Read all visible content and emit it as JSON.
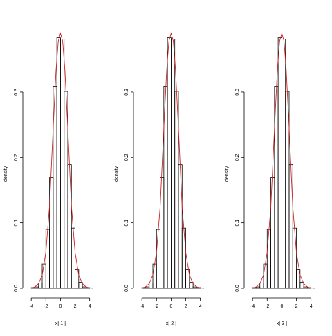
{
  "chart_data": [
    {
      "type": "bar",
      "xlabel": "x[ 1 ]",
      "ylabel": "density",
      "xticks": [
        "-4",
        "-2",
        "0",
        "2",
        "4"
      ],
      "yticks": [
        "0.0",
        "0.1",
        "0.2",
        "0.3"
      ],
      "xlim": [
        -4.3,
        4.6
      ],
      "ylim": [
        0,
        0.39
      ],
      "bin_edges": [
        -4,
        -3.5,
        -3,
        -2.5,
        -2,
        -1.5,
        -1,
        -0.5,
        0,
        0.5,
        1,
        1.5,
        2,
        2.5,
        3,
        3.5,
        4
      ],
      "values": [
        0.001,
        0.002,
        0.008,
        0.037,
        0.09,
        0.169,
        0.309,
        0.383,
        0.381,
        0.301,
        0.189,
        0.092,
        0.028,
        0.009,
        0.002,
        0.001
      ],
      "density_curve": {
        "x": [
          -4.0,
          -3.5,
          -3.0,
          -2.5,
          -2.0,
          -1.5,
          -1.0,
          -0.6,
          -0.3,
          0.0,
          0.3,
          0.6,
          1.0,
          1.5,
          2.0,
          2.5,
          3.0,
          3.5,
          4.0,
          4.5
        ],
        "y": [
          0.0005,
          0.002,
          0.007,
          0.02,
          0.055,
          0.125,
          0.245,
          0.335,
          0.378,
          0.39,
          0.378,
          0.335,
          0.245,
          0.125,
          0.055,
          0.02,
          0.007,
          0.002,
          0.0005,
          0.0001
        ],
        "color": "#cc2222"
      },
      "bar_color": "#000000"
    },
    {
      "type": "bar",
      "xlabel": "x[ 2 ]",
      "ylabel": "density",
      "xticks": [
        "-4",
        "-2",
        "0",
        "2",
        "4"
      ],
      "yticks": [
        "0.0",
        "0.1",
        "0.2",
        "0.3"
      ],
      "xlim": [
        -4.3,
        4.6
      ],
      "ylim": [
        0,
        0.39
      ],
      "bin_edges": [
        -4,
        -3.5,
        -3,
        -2.5,
        -2,
        -1.5,
        -1,
        -0.5,
        0,
        0.5,
        1,
        1.5,
        2,
        2.5,
        3,
        3.5,
        4
      ],
      "values": [
        0.001,
        0.002,
        0.008,
        0.037,
        0.09,
        0.169,
        0.309,
        0.383,
        0.381,
        0.301,
        0.189,
        0.092,
        0.028,
        0.009,
        0.002,
        0.001
      ],
      "density_curve": {
        "x": [
          -4.0,
          -3.5,
          -3.0,
          -2.5,
          -2.0,
          -1.5,
          -1.0,
          -0.6,
          -0.3,
          0.0,
          0.3,
          0.6,
          1.0,
          1.5,
          2.0,
          2.5,
          3.0,
          3.5,
          4.0,
          4.5
        ],
        "y": [
          0.0005,
          0.002,
          0.007,
          0.02,
          0.055,
          0.125,
          0.245,
          0.335,
          0.378,
          0.39,
          0.378,
          0.335,
          0.245,
          0.125,
          0.055,
          0.02,
          0.007,
          0.002,
          0.0005,
          0.0001
        ],
        "color": "#cc2222"
      },
      "bar_color": "#000000"
    },
    {
      "type": "bar",
      "xlabel": "x[ 3 ]",
      "ylabel": "density",
      "xticks": [
        "-4",
        "-2",
        "0",
        "2",
        "4"
      ],
      "yticks": [
        "0.0",
        "0.1",
        "0.2",
        "0.3"
      ],
      "xlim": [
        -4.3,
        4.6
      ],
      "ylim": [
        0,
        0.39
      ],
      "bin_edges": [
        -4,
        -3.5,
        -3,
        -2.5,
        -2,
        -1.5,
        -1,
        -0.5,
        0,
        0.5,
        1,
        1.5,
        2,
        2.5,
        3,
        3.5,
        4
      ],
      "values": [
        0.001,
        0.002,
        0.008,
        0.037,
        0.09,
        0.169,
        0.309,
        0.383,
        0.381,
        0.301,
        0.189,
        0.092,
        0.028,
        0.009,
        0.002,
        0.001
      ],
      "density_curve": {
        "x": [
          -4.0,
          -3.5,
          -3.0,
          -2.5,
          -2.0,
          -1.5,
          -1.0,
          -0.6,
          -0.3,
          0.0,
          0.3,
          0.6,
          1.0,
          1.5,
          2.0,
          2.5,
          3.0,
          3.5,
          4.0,
          4.5
        ],
        "y": [
          0.0005,
          0.002,
          0.007,
          0.02,
          0.055,
          0.125,
          0.245,
          0.335,
          0.378,
          0.39,
          0.378,
          0.335,
          0.245,
          0.125,
          0.055,
          0.02,
          0.007,
          0.002,
          0.0005,
          0.0001
        ],
        "color": "#cc2222"
      },
      "bar_color": "#000000"
    }
  ]
}
